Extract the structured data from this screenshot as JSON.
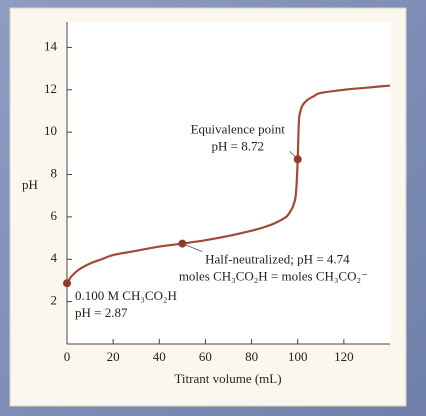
{
  "chart_data": {
    "type": "line",
    "x_label": "Titrant volume (mL)",
    "y_label": "pH",
    "x": [
      0,
      2,
      5,
      10,
      15,
      20,
      30,
      40,
      50,
      60,
      70,
      80,
      85,
      90,
      95,
      97,
      98,
      99,
      99.5,
      100,
      100.5,
      101,
      102,
      104,
      107,
      110,
      120,
      130,
      140
    ],
    "values": [
      2.87,
      3.2,
      3.5,
      3.8,
      4.0,
      4.2,
      4.4,
      4.6,
      4.74,
      4.9,
      5.1,
      5.35,
      5.5,
      5.7,
      6.0,
      6.3,
      6.5,
      6.9,
      7.5,
      8.72,
      10.5,
      10.9,
      11.25,
      11.5,
      11.7,
      11.85,
      12.0,
      12.1,
      12.2
    ],
    "color": "#a34a35",
    "xlim": [
      0,
      140
    ],
    "ylim": [
      0,
      15.2
    ],
    "xticks": [
      0,
      20,
      40,
      60,
      80,
      100,
      120
    ],
    "yticks": [
      2,
      4,
      6,
      8,
      10,
      12,
      14
    ],
    "points": [
      {
        "x": 0,
        "y": 2.87,
        "label": [
          "0.100 M CH₃CO₂H",
          "pH = 2.87"
        ]
      },
      {
        "x": 50,
        "y": 4.74,
        "label": [
          "Half-neutralized; pH = 4.74",
          "moles CH₃CO₂H = moles CH₃CO₂⁻"
        ]
      },
      {
        "x": 100,
        "y": 8.72,
        "label": [
          "Equivalence point",
          "pH = 8.72"
        ]
      }
    ]
  }
}
